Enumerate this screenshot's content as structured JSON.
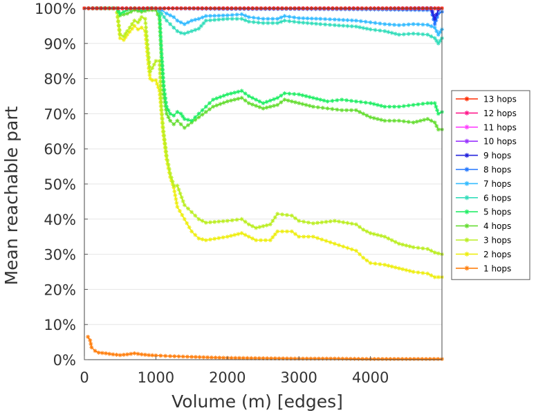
{
  "chart_data": {
    "type": "line",
    "title": "",
    "xlabel": "Volume (m) [edges]",
    "ylabel": "Mean reachable part",
    "xlim": [
      0,
      5000
    ],
    "ylim": [
      0,
      100
    ],
    "x_ticks": [
      0,
      1000,
      2000,
      3000,
      4000
    ],
    "x_tick_labels": [
      "0",
      "1000",
      "2000",
      "3000",
      "4000"
    ],
    "y_ticks": [
      0,
      10,
      20,
      30,
      40,
      50,
      60,
      70,
      80,
      90,
      100
    ],
    "y_tick_labels": [
      "0%",
      "10%",
      "20%",
      "30%",
      "40%",
      "50%",
      "60%",
      "70%",
      "80%",
      "90%",
      "100%"
    ],
    "grid": true,
    "legend_position": "right",
    "series": [
      {
        "name": "13 hops",
        "color": "#ff2a00",
        "x": [
          0,
          1000,
          2000,
          3000,
          4000,
          4900,
          5000
        ],
        "values": [
          100,
          100,
          100,
          100,
          100,
          100,
          100
        ]
      },
      {
        "name": "12 hops",
        "color": "#ff1a8c",
        "x": [
          0,
          1000,
          2000,
          3000,
          4000,
          4900,
          5000
        ],
        "values": [
          100,
          100,
          100,
          100,
          100,
          100,
          100
        ]
      },
      {
        "name": "11 hops",
        "color": "#ff40ff",
        "x": [
          0,
          1000,
          2000,
          3000,
          4000,
          4900,
          5000
        ],
        "values": [
          100,
          100,
          100,
          100,
          100,
          100,
          100
        ]
      },
      {
        "name": "10 hops",
        "color": "#9933ff",
        "x": [
          0,
          1000,
          2000,
          3000,
          4000,
          4900,
          5000
        ],
        "values": [
          100,
          100,
          100,
          100,
          100,
          100,
          100
        ]
      },
      {
        "name": "9 hops",
        "color": "#2222dd",
        "x": [
          0,
          1000,
          2000,
          3000,
          4000,
          4850,
          4900,
          4950,
          5000
        ],
        "values": [
          100,
          100,
          100,
          100,
          100,
          100,
          97,
          99.5,
          100
        ]
      },
      {
        "name": "8 hops",
        "color": "#2277ff",
        "x": [
          0,
          1000,
          2000,
          3000,
          4000,
          4850,
          4900,
          4950,
          5000
        ],
        "values": [
          100,
          100,
          99.8,
          99.8,
          99.7,
          99.5,
          95.5,
          98.5,
          99
        ]
      },
      {
        "name": "7 hops",
        "color": "#33bbff",
        "x": [
          0,
          1000,
          1080,
          1150,
          1250,
          1300,
          1350,
          1400,
          1500,
          1600,
          1700,
          2000,
          2200,
          2300,
          2500,
          2700,
          2800,
          3000,
          3300,
          3500,
          3800,
          4000,
          4200,
          4400,
          4600,
          4800,
          4900,
          4950,
          5000
        ],
        "values": [
          100,
          100,
          99.5,
          98.5,
          97.5,
          96.5,
          96,
          95.5,
          96.5,
          97,
          97.8,
          98,
          98.3,
          97.5,
          97,
          97,
          97.8,
          97.2,
          97,
          96.8,
          96.5,
          96,
          95.5,
          95.2,
          95.5,
          95.3,
          94.5,
          92.5,
          94
        ]
      },
      {
        "name": "6 hops",
        "color": "#33ddbb",
        "x": [
          0,
          1000,
          1080,
          1150,
          1250,
          1300,
          1350,
          1400,
          1500,
          1600,
          1700,
          2000,
          2200,
          2300,
          2500,
          2700,
          2800,
          3000,
          3300,
          3500,
          3800,
          4000,
          4200,
          4400,
          4600,
          4800,
          4900,
          4950,
          5000
        ],
        "values": [
          100,
          100,
          98.5,
          96.5,
          94.5,
          93.5,
          93,
          92.8,
          93.5,
          94.2,
          96.5,
          97,
          97,
          96.2,
          95.8,
          95.8,
          96.5,
          96,
          95.5,
          95.2,
          94.8,
          94,
          93.5,
          92.5,
          92.8,
          92.5,
          91.5,
          90,
          91.5
        ]
      },
      {
        "name": "5 hops",
        "color": "#22ee66",
        "x": [
          0,
          450,
          500,
          600,
          700,
          800,
          900,
          1000,
          1050,
          1080,
          1110,
          1150,
          1200,
          1250,
          1300,
          1350,
          1400,
          1500,
          1600,
          1700,
          1800,
          2000,
          2200,
          2300,
          2500,
          2700,
          2800,
          3000,
          3200,
          3400,
          3600,
          3800,
          4000,
          4200,
          4400,
          4600,
          4800,
          4900,
          4950,
          5000
        ],
        "values": [
          100,
          100,
          98.5,
          99.5,
          100,
          99.5,
          100,
          100,
          99,
          87,
          78,
          72,
          70,
          69.5,
          70.5,
          70,
          68.5,
          68,
          70,
          72,
          74,
          75.5,
          76.5,
          75,
          73,
          74.5,
          75.8,
          75.5,
          74.5,
          73.5,
          74,
          73.5,
          73,
          72,
          72,
          72.5,
          73,
          73,
          70,
          70.5
        ]
      },
      {
        "name": "4 hops",
        "color": "#66dd33",
        "x": [
          0,
          450,
          500,
          600,
          700,
          800,
          900,
          1000,
          1050,
          1080,
          1110,
          1150,
          1200,
          1250,
          1300,
          1350,
          1400,
          1500,
          1600,
          1700,
          1800,
          2000,
          2200,
          2300,
          2500,
          2700,
          2800,
          3000,
          3200,
          3400,
          3600,
          3800,
          4000,
          4200,
          4400,
          4600,
          4800,
          4900,
          4950,
          5000
        ],
        "values": [
          100,
          100,
          98,
          98.5,
          99.5,
          99,
          99.5,
          99.5,
          97,
          85,
          75.5,
          70,
          68,
          67,
          68,
          67,
          66,
          67.5,
          69,
          70.5,
          72,
          73.5,
          74.5,
          73,
          71.5,
          72.5,
          74,
          73,
          72,
          71.5,
          71,
          71,
          69,
          68,
          68,
          67.5,
          68.5,
          67.5,
          65.5,
          65.5
        ]
      },
      {
        "name": "3 hops",
        "color": "#bbee22",
        "x": [
          0,
          450,
          500,
          550,
          600,
          700,
          750,
          800,
          850,
          900,
          920,
          950,
          1000,
          1050,
          1080,
          1100,
          1150,
          1200,
          1250,
          1300,
          1400,
          1500,
          1600,
          1700,
          2000,
          2200,
          2300,
          2400,
          2600,
          2700,
          2900,
          3000,
          3200,
          3500,
          3800,
          3900,
          4000,
          4200,
          4400,
          4600,
          4800,
          4900,
          5000
        ],
        "values": [
          100,
          100,
          92.5,
          92,
          93.5,
          96.5,
          96,
          97.5,
          97,
          86,
          82,
          83,
          85,
          85,
          71,
          66,
          58,
          53,
          49.5,
          49.5,
          44,
          42,
          40,
          39,
          39.5,
          40,
          38.5,
          37.5,
          38.5,
          41.5,
          41,
          39.5,
          38.8,
          39.5,
          38.5,
          37,
          36,
          35,
          33,
          32,
          31.5,
          30.5,
          30
        ]
      },
      {
        "name": "2 hops",
        "color": "#eeee11",
        "x": [
          0,
          450,
          500,
          550,
          600,
          700,
          750,
          800,
          850,
          900,
          920,
          950,
          1000,
          1050,
          1080,
          1100,
          1150,
          1200,
          1250,
          1300,
          1400,
          1500,
          1600,
          1700,
          2000,
          2200,
          2300,
          2400,
          2600,
          2700,
          2900,
          3000,
          3200,
          3500,
          3800,
          3900,
          4000,
          4200,
          4400,
          4600,
          4800,
          4900,
          5000
        ],
        "values": [
          100,
          100,
          91.5,
          91,
          92.5,
          95,
          94,
          94.5,
          93.5,
          83,
          80,
          79.5,
          79.5,
          76.5,
          70,
          65,
          57,
          52,
          49,
          43.5,
          40,
          36.5,
          34.5,
          34,
          35,
          36,
          35,
          34,
          34,
          36.5,
          36.5,
          35,
          35,
          33,
          31,
          29,
          27.5,
          27,
          26,
          25,
          24.5,
          23.5,
          23.5
        ]
      },
      {
        "name": "1 hops",
        "color": "#ff7f0e",
        "x": [
          50,
          80,
          100,
          150,
          200,
          300,
          400,
          500,
          600,
          700,
          800,
          900,
          1000,
          1200,
          1500,
          2000,
          2500,
          3000,
          3500,
          4000,
          4500,
          5000
        ],
        "values": [
          6.5,
          5.5,
          3.5,
          2.5,
          2,
          1.8,
          1.5,
          1.3,
          1.5,
          1.8,
          1.5,
          1.3,
          1.2,
          1,
          0.8,
          0.5,
          0.4,
          0.3,
          0.3,
          0.2,
          0.2,
          0.2
        ]
      }
    ]
  }
}
